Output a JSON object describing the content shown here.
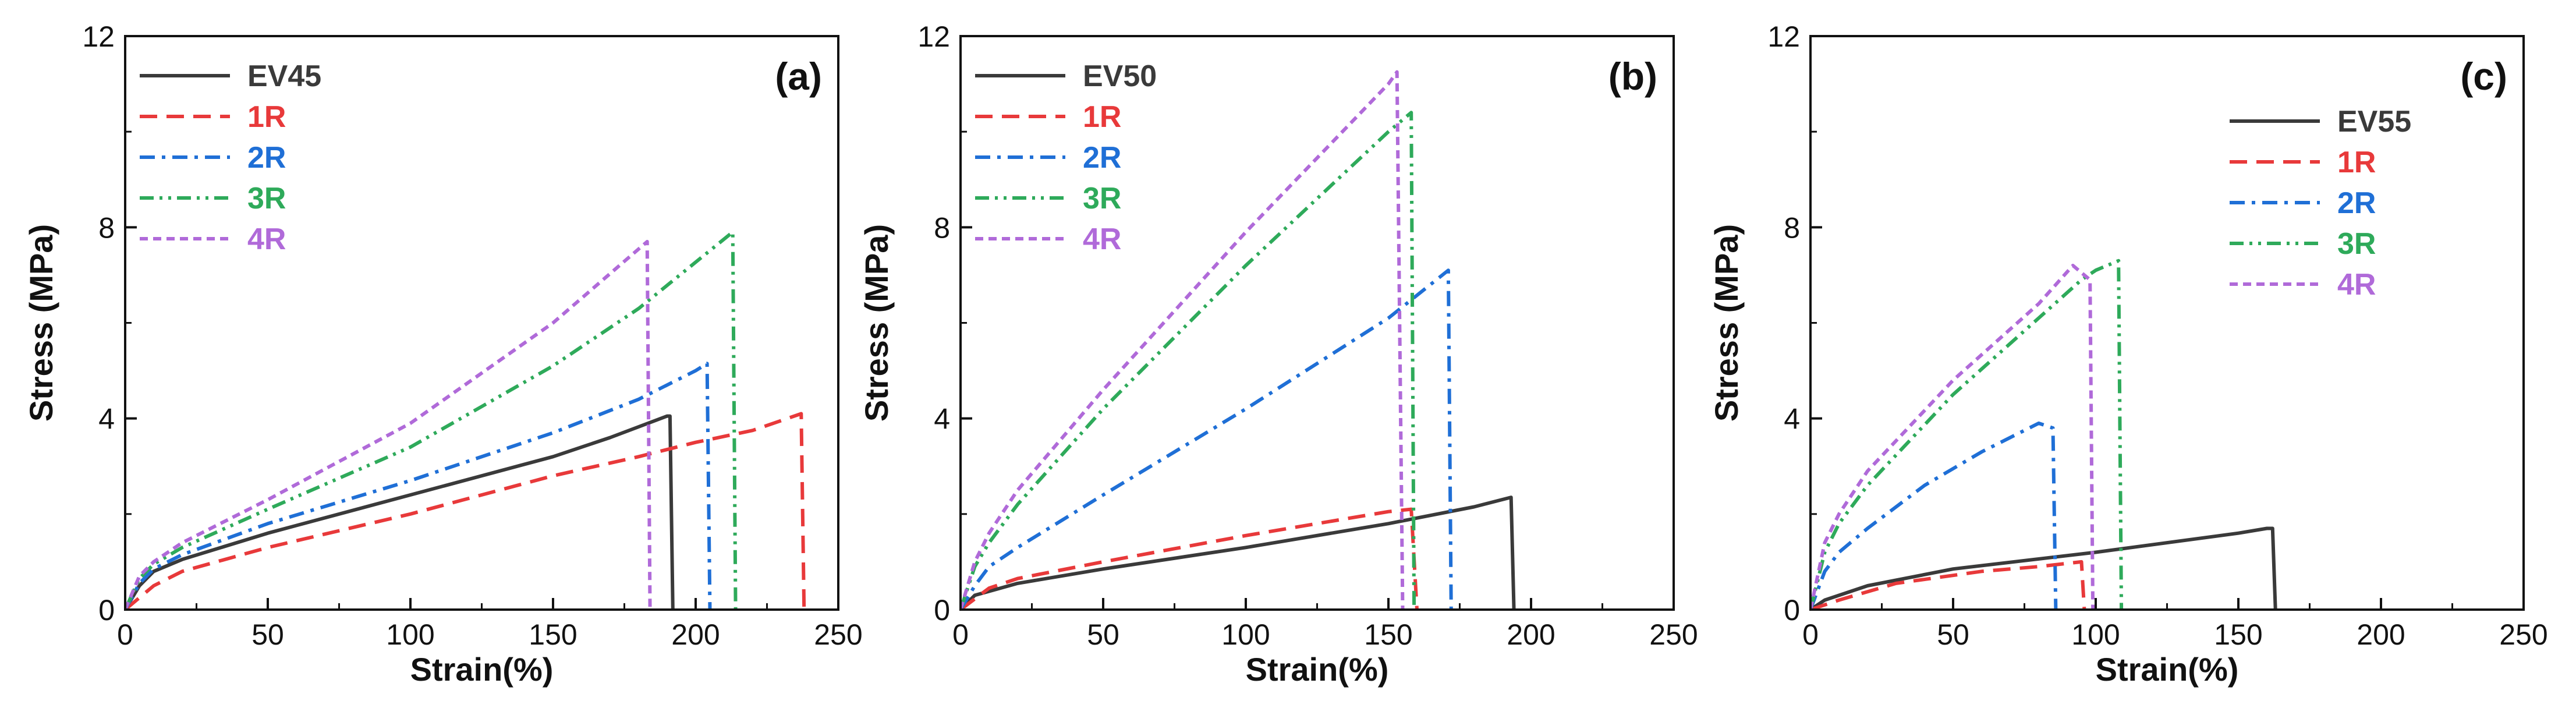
{
  "colors": {
    "EV": "#3a3a3a",
    "1R": "#e8393a",
    "2R": "#1f6fd6",
    "3R": "#2eaa5a",
    "4R": "#b06ad9",
    "axis": "#111111"
  },
  "chart_data": [
    {
      "type": "line",
      "panel": "(a)",
      "xlabel": "Strain(%)",
      "ylabel": "Stress (MPa)",
      "xlim": [
        0,
        250
      ],
      "ylim": [
        0,
        12
      ],
      "xticks": [
        0,
        50,
        100,
        150,
        200,
        250
      ],
      "yticks": [
        0,
        4,
        8,
        12
      ],
      "legend_position": "top-left",
      "series": [
        {
          "name": "EV45",
          "key": "EV",
          "dash": "solid",
          "points": [
            [
              0,
              0
            ],
            [
              5,
              0.5
            ],
            [
              10,
              0.8
            ],
            [
              20,
              1.05
            ],
            [
              50,
              1.6
            ],
            [
              100,
              2.4
            ],
            [
              150,
              3.2
            ],
            [
              170,
              3.6
            ],
            [
              190,
              4.05
            ],
            [
              191,
              4.05
            ],
            [
              192,
              0
            ]
          ]
        },
        {
          "name": "1R",
          "key": "1R",
          "dash": "dash",
          "points": [
            [
              0,
              0
            ],
            [
              10,
              0.5
            ],
            [
              20,
              0.8
            ],
            [
              50,
              1.3
            ],
            [
              100,
              2.0
            ],
            [
              150,
              2.8
            ],
            [
              180,
              3.2
            ],
            [
              200,
              3.5
            ],
            [
              220,
              3.75
            ],
            [
              237,
              4.1
            ],
            [
              238,
              0
            ]
          ]
        },
        {
          "name": "2R",
          "key": "2R",
          "dash": "dashdot",
          "points": [
            [
              0,
              0
            ],
            [
              5,
              0.55
            ],
            [
              10,
              0.85
            ],
            [
              20,
              1.15
            ],
            [
              50,
              1.8
            ],
            [
              100,
              2.7
            ],
            [
              150,
              3.7
            ],
            [
              180,
              4.4
            ],
            [
              200,
              5.0
            ],
            [
              204,
              5.15
            ],
            [
              205,
              0
            ]
          ]
        },
        {
          "name": "3R",
          "key": "3R",
          "dash": "dashdotdot",
          "points": [
            [
              0,
              0
            ],
            [
              5,
              0.65
            ],
            [
              10,
              0.95
            ],
            [
              20,
              1.3
            ],
            [
              50,
              2.1
            ],
            [
              100,
              3.4
            ],
            [
              150,
              5.1
            ],
            [
              180,
              6.3
            ],
            [
              213,
              7.9
            ],
            [
              214,
              0
            ]
          ]
        },
        {
          "name": "4R",
          "key": "4R",
          "dash": "shortdash",
          "points": [
            [
              0,
              0
            ],
            [
              5,
              0.7
            ],
            [
              10,
              1.0
            ],
            [
              20,
              1.4
            ],
            [
              50,
              2.3
            ],
            [
              100,
              3.9
            ],
            [
              150,
              6.0
            ],
            [
              183,
              7.7
            ],
            [
              184,
              0
            ]
          ]
        }
      ]
    },
    {
      "type": "line",
      "panel": "(b)",
      "xlabel": "Strain(%)",
      "ylabel": "Stress (MPa)",
      "xlim": [
        0,
        250
      ],
      "ylim": [
        0,
        12
      ],
      "xticks": [
        0,
        50,
        100,
        150,
        200,
        250
      ],
      "yticks": [
        0,
        4,
        8,
        12
      ],
      "legend_position": "top-left",
      "series": [
        {
          "name": "EV50",
          "key": "EV",
          "dash": "solid",
          "points": [
            [
              0,
              0
            ],
            [
              5,
              0.3
            ],
            [
              20,
              0.55
            ],
            [
              50,
              0.85
            ],
            [
              100,
              1.3
            ],
            [
              150,
              1.8
            ],
            [
              180,
              2.15
            ],
            [
              193,
              2.35
            ],
            [
              194,
              0
            ]
          ]
        },
        {
          "name": "1R",
          "key": "1R",
          "dash": "dash",
          "points": [
            [
              0,
              0
            ],
            [
              10,
              0.45
            ],
            [
              20,
              0.65
            ],
            [
              50,
              1.0
            ],
            [
              100,
              1.55
            ],
            [
              150,
              2.05
            ],
            [
              158,
              2.1
            ],
            [
              160,
              0
            ]
          ]
        },
        {
          "name": "2R",
          "key": "2R",
          "dash": "dashdot",
          "points": [
            [
              0,
              0
            ],
            [
              5,
              0.5
            ],
            [
              10,
              0.9
            ],
            [
              20,
              1.3
            ],
            [
              50,
              2.4
            ],
            [
              100,
              4.2
            ],
            [
              150,
              6.1
            ],
            [
              171,
              7.1
            ],
            [
              172,
              0
            ]
          ]
        },
        {
          "name": "3R",
          "key": "3R",
          "dash": "dashdotdot",
          "points": [
            [
              0,
              0
            ],
            [
              5,
              0.9
            ],
            [
              10,
              1.4
            ],
            [
              20,
              2.2
            ],
            [
              50,
              4.2
            ],
            [
              100,
              7.2
            ],
            [
              150,
              10.0
            ],
            [
              158,
              10.4
            ],
            [
              159,
              0
            ]
          ]
        },
        {
          "name": "4R",
          "key": "4R",
          "dash": "shortdash",
          "points": [
            [
              0,
              0
            ],
            [
              5,
              1.0
            ],
            [
              10,
              1.6
            ],
            [
              20,
              2.5
            ],
            [
              50,
              4.6
            ],
            [
              100,
              7.9
            ],
            [
              150,
              11.0
            ],
            [
              153,
              11.25
            ],
            [
              155,
              0
            ]
          ]
        }
      ]
    },
    {
      "type": "line",
      "panel": "(c)",
      "xlabel": "Strain(%)",
      "ylabel": "Stress (MPa)",
      "xlim": [
        0,
        250
      ],
      "ylim": [
        0,
        12
      ],
      "xticks": [
        0,
        50,
        100,
        150,
        200,
        250
      ],
      "yticks": [
        0,
        4,
        8,
        12
      ],
      "legend_position": "upper-center",
      "series": [
        {
          "name": "EV55",
          "key": "EV",
          "dash": "solid",
          "points": [
            [
              0,
              0
            ],
            [
              5,
              0.2
            ],
            [
              20,
              0.5
            ],
            [
              50,
              0.85
            ],
            [
              100,
              1.2
            ],
            [
              150,
              1.6
            ],
            [
              160,
              1.7
            ],
            [
              162,
              1.7
            ],
            [
              163,
              0
            ]
          ]
        },
        {
          "name": "1R",
          "key": "1R",
          "dash": "dash",
          "points": [
            [
              0,
              0
            ],
            [
              10,
              0.2
            ],
            [
              30,
              0.55
            ],
            [
              60,
              0.8
            ],
            [
              80,
              0.9
            ],
            [
              95,
              1.0
            ],
            [
              96,
              0
            ]
          ]
        },
        {
          "name": "2R",
          "key": "2R",
          "dash": "dashdot",
          "points": [
            [
              0,
              0
            ],
            [
              5,
              0.8
            ],
            [
              10,
              1.2
            ],
            [
              20,
              1.7
            ],
            [
              40,
              2.6
            ],
            [
              60,
              3.3
            ],
            [
              80,
              3.9
            ],
            [
              85,
              3.8
            ],
            [
              86,
              0
            ]
          ]
        },
        {
          "name": "3R",
          "key": "3R",
          "dash": "dashdotdot",
          "points": [
            [
              0,
              0
            ],
            [
              5,
              1.2
            ],
            [
              10,
              1.8
            ],
            [
              20,
              2.6
            ],
            [
              50,
              4.5
            ],
            [
              80,
              6.1
            ],
            [
              95,
              6.9
            ],
            [
              100,
              7.1
            ],
            [
              108,
              7.3
            ],
            [
              109,
              0
            ]
          ]
        },
        {
          "name": "4R",
          "key": "4R",
          "dash": "shortdash",
          "points": [
            [
              0,
              0
            ],
            [
              5,
              1.4
            ],
            [
              10,
              2.0
            ],
            [
              20,
              2.9
            ],
            [
              50,
              4.8
            ],
            [
              80,
              6.4
            ],
            [
              92,
              7.2
            ],
            [
              98,
              6.9
            ],
            [
              99,
              0
            ]
          ]
        }
      ]
    }
  ]
}
